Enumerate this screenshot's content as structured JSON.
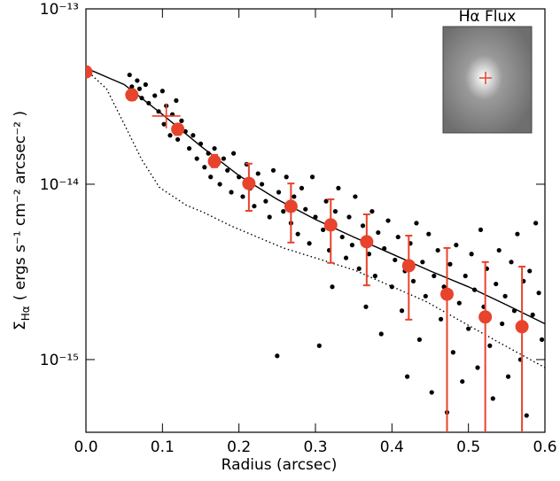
{
  "chart_data": {
    "type": "scatter",
    "xlabel": "Radius (arcsec)",
    "ylabel_symbol": "Σ",
    "ylabel_sub": "Hα",
    "ylabel_rest": "( ergs s⁻¹ cm⁻² arcsec⁻² )",
    "inset_label": "Hα Flux",
    "xlim": [
      0,
      0.6
    ],
    "ylim": [
      3.85e-16,
      1e-13
    ],
    "log_y": true,
    "xticks": [
      {
        "value": 0,
        "label": "0.0"
      },
      0.1,
      0.2,
      0.3,
      0.4,
      0.5,
      0.6
    ],
    "yticks": [
      {
        "value": 1e-15,
        "label": "10⁻¹⁵"
      },
      {
        "value": 1e-14,
        "label": "10⁻¹⁴"
      },
      {
        "value": 1e-13,
        "label": "10⁻¹³"
      }
    ],
    "points": {
      "color": "#000000",
      "x": [
        0.057,
        0.06,
        0.063,
        0.067,
        0.07,
        0.073,
        0.078,
        0.082,
        0.09,
        0.095,
        0.1,
        0.102,
        0.105,
        0.11,
        0.113,
        0.118,
        0.12,
        0.125,
        0.13,
        0.135,
        0.14,
        0.145,
        0.15,
        0.155,
        0.16,
        0.163,
        0.168,
        0.172,
        0.175,
        0.18,
        0.185,
        0.19,
        0.193,
        0.2,
        0.205,
        0.21,
        0.215,
        0.22,
        0.225,
        0.23,
        0.235,
        0.24,
        0.245,
        0.25,
        0.252,
        0.258,
        0.262,
        0.268,
        0.272,
        0.277,
        0.282,
        0.287,
        0.292,
        0.296,
        0.3,
        0.305,
        0.31,
        0.314,
        0.318,
        0.322,
        0.326,
        0.33,
        0.335,
        0.34,
        0.344,
        0.348,
        0.352,
        0.357,
        0.362,
        0.366,
        0.37,
        0.374,
        0.378,
        0.382,
        0.386,
        0.39,
        0.395,
        0.4,
        0.404,
        0.408,
        0.413,
        0.417,
        0.42,
        0.424,
        0.428,
        0.432,
        0.436,
        0.44,
        0.444,
        0.448,
        0.452,
        0.455,
        0.46,
        0.464,
        0.468,
        0.472,
        0.476,
        0.48,
        0.484,
        0.488,
        0.492,
        0.496,
        0.5,
        0.504,
        0.508,
        0.512,
        0.516,
        0.52,
        0.524,
        0.528,
        0.532,
        0.536,
        0.54,
        0.544,
        0.548,
        0.552,
        0.556,
        0.56,
        0.564,
        0.568,
        0.572,
        0.576,
        0.58,
        0.584,
        0.588,
        0.592,
        0.596
      ],
      "values": [
        4.2e-14,
        3.6e-14,
        3.3e-14,
        3.9e-14,
        3.5e-14,
        3.1e-14,
        3.7e-14,
        2.9e-14,
        3.2e-14,
        2.6e-14,
        3.4e-14,
        2.2e-14,
        2.8e-14,
        1.9e-14,
        2.5e-14,
        3e-14,
        1.8e-14,
        2.3e-14,
        2e-14,
        1.6e-14,
        1.9e-14,
        1.4e-14,
        1.7e-14,
        1.25e-14,
        1.5e-14,
        1.1e-14,
        1.6e-14,
        1.3e-14,
        1e-14,
        1.4e-14,
        1.2e-14,
        9e-15,
        1.5e-14,
        1.1e-14,
        8.5e-15,
        1.3e-14,
        9.5e-15,
        7.5e-15,
        1.15e-14,
        1e-14,
        8e-15,
        6.5e-15,
        1.2e-14,
        1.05e-15,
        9e-15,
        7e-15,
        1.1e-14,
        6e-15,
        8.5e-15,
        5.2e-15,
        9.5e-15,
        7.2e-15,
        4.6e-15,
        1.1e-14,
        6.5e-15,
        1.2e-15,
        5.5e-15,
        8e-15,
        4.2e-15,
        2.6e-15,
        7e-15,
        9.5e-15,
        5e-15,
        3.8e-15,
        6.5e-15,
        4.5e-15,
        8.5e-15,
        3.3e-15,
        5.8e-15,
        2e-15,
        4e-15,
        7e-15,
        3e-15,
        5.3e-15,
        1.4e-15,
        4.3e-15,
        6.2e-15,
        2.6e-15,
        3.7e-15,
        5e-15,
        1.9e-15,
        3.2e-15,
        8e-16,
        4.6e-15,
        2.8e-15,
        6e-15,
        1.3e-15,
        3.6e-15,
        2.3e-15,
        5.2e-15,
        6.5e-16,
        3e-15,
        4.2e-15,
        1.7e-15,
        2.6e-15,
        5e-16,
        3.5e-15,
        1.1e-15,
        4.5e-15,
        2.1e-15,
        7.5e-16,
        3e-15,
        1.5e-15,
        4e-15,
        2.5e-15,
        9e-16,
        5.5e-15,
        2e-15,
        3.3e-15,
        1.2e-15,
        6e-16,
        2.7e-15,
        4.2e-15,
        1.6e-15,
        2.3e-15,
        8e-16,
        3.6e-15,
        1.9e-15,
        5.2e-15,
        1e-15,
        2.8e-15,
        4.8e-16,
        3.2e-15,
        1.8e-15,
        6e-15,
        2.4e-15,
        1.3e-15
      ]
    },
    "binned": {
      "color": "#e8432c",
      "x": [
        0,
        0.06,
        0.12,
        0.168,
        0.213,
        0.268,
        0.32,
        0.367,
        0.422,
        0.472,
        0.522,
        0.57
      ],
      "values": [
        4.37e-14,
        3.23e-14,
        2.06e-14,
        1.35e-14,
        1.01e-14,
        7.48e-15,
        5.86e-15,
        4.7e-15,
        3.43e-15,
        2.36e-15,
        1.75e-15,
        1.54e-15
      ],
      "upper": [
        null,
        3.47e-14,
        2.2e-14,
        1.47e-14,
        1.31e-14,
        1.01e-14,
        8.2e-15,
        6.73e-15,
        5.09e-15,
        4.33e-15,
        3.6e-15,
        3.39e-15
      ],
      "lower": [
        null,
        3.02e-14,
        1.91e-14,
        1.25e-14,
        7.05e-15,
        4.65e-15,
        3.56e-15,
        2.65e-15,
        1.69e-15,
        null,
        null,
        null
      ]
    },
    "cross": {
      "color": "#e8432c",
      "x": 0.105,
      "value": 2.45e-14
    },
    "model": {
      "color": "#000000",
      "x": [
        0,
        0.05,
        0.1,
        0.15,
        0.2,
        0.25,
        0.3,
        0.35,
        0.4,
        0.45,
        0.5,
        0.55,
        0.6
      ],
      "values": [
        4.6e-14,
        3.7e-14,
        2.5e-14,
        1.65e-14,
        1.12e-14,
        8.2e-15,
        6.3e-15,
        5e-15,
        4e-15,
        3.2e-15,
        2.6e-15,
        2.05e-15,
        1.6e-15
      ]
    },
    "psf": {
      "color": "#000000",
      "x": [
        0,
        0.027,
        0.05,
        0.073,
        0.096,
        0.131,
        0.154,
        0.189,
        0.258,
        0.351,
        0.444,
        0.536,
        0.6
      ],
      "values": [
        4.5e-14,
        3.5e-14,
        2.2e-14,
        1.38e-14,
        9.6e-15,
        7.6e-15,
        6.9e-15,
        5.8e-15,
        4.33e-15,
        3.24e-15,
        2.15e-15,
        1.28e-15,
        9e-16
      ]
    }
  }
}
